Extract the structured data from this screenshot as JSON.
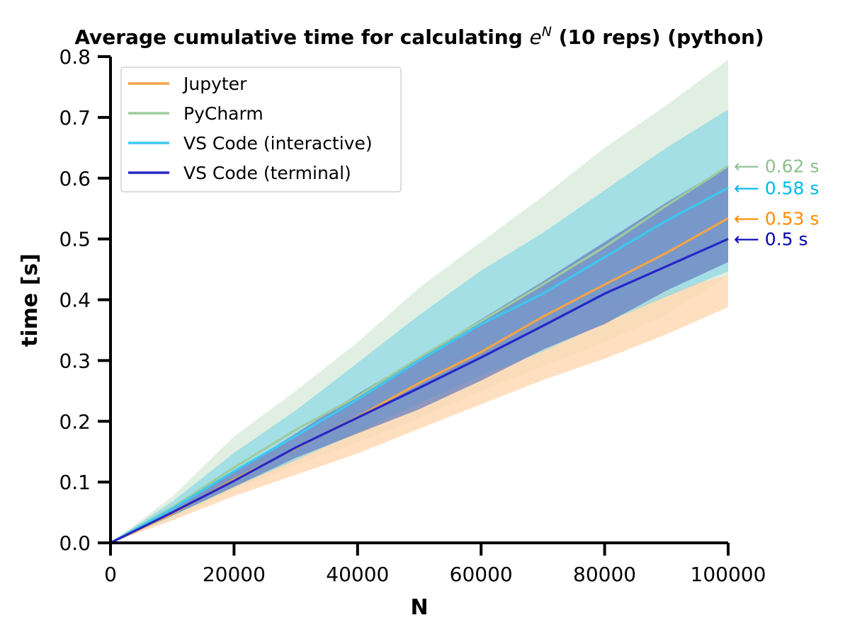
{
  "chart_data": {
    "type": "line",
    "title_prefix": "Average cumulative time for calculating ",
    "title_base": "e",
    "title_sup": "N",
    "title_suffix": " (10 reps) (python)",
    "xlabel": "N",
    "ylabel": "time [s]",
    "xlim": [
      0,
      100000
    ],
    "ylim": [
      0,
      0.8
    ],
    "xticks": [
      0,
      20000,
      40000,
      60000,
      80000,
      100000
    ],
    "xtick_labels": [
      "0",
      "20000",
      "40000",
      "60000",
      "80000",
      "100000"
    ],
    "yticks": [
      0.0,
      0.1,
      0.2,
      0.3,
      0.4,
      0.5,
      0.6,
      0.7,
      0.8
    ],
    "ytick_labels": [
      "0.0",
      "0.1",
      "0.2",
      "0.3",
      "0.4",
      "0.5",
      "0.6",
      "0.7",
      "0.8"
    ],
    "grid": false,
    "legend_position": "top-left",
    "x": [
      0,
      10000,
      20000,
      30000,
      40000,
      50000,
      60000,
      70000,
      80000,
      90000,
      100000
    ],
    "series": [
      {
        "name": "Jupyter",
        "color": "#f5a445",
        "band_color": "#ffd7b0",
        "mean": [
          0,
          0.048,
          0.104,
          0.156,
          0.207,
          0.263,
          0.314,
          0.372,
          0.425,
          0.477,
          0.534
        ],
        "lower": [
          0,
          0.037,
          0.077,
          0.112,
          0.147,
          0.188,
          0.228,
          0.268,
          0.303,
          0.343,
          0.388
        ],
        "upper": [
          0,
          0.053,
          0.115,
          0.17,
          0.225,
          0.282,
          0.328,
          0.37,
          0.398,
          0.415,
          0.44
        ],
        "end_label": "0.53 s",
        "end_label_color": "#ff8c00"
      },
      {
        "name": "PyCharm",
        "color": "#9ecb9e",
        "band_color": "#d5e9d8",
        "mean": [
          0,
          0.058,
          0.124,
          0.186,
          0.241,
          0.305,
          0.365,
          0.425,
          0.487,
          0.555,
          0.62
        ],
        "lower": [
          0,
          0.04,
          0.088,
          0.128,
          0.165,
          0.205,
          0.25,
          0.29,
          0.33,
          0.375,
          0.44
        ],
        "upper": [
          0,
          0.076,
          0.175,
          0.25,
          0.33,
          0.42,
          0.495,
          0.57,
          0.65,
          0.72,
          0.795
        ],
        "end_label": "0.62 s",
        "end_label_color": "#8fbf8f"
      },
      {
        "name": "VS Code (interactive)",
        "color": "#3cc8f0",
        "band_color": "#8fd9e6",
        "mean": [
          0,
          0.056,
          0.118,
          0.176,
          0.236,
          0.3,
          0.36,
          0.41,
          0.47,
          0.53,
          0.584
        ],
        "lower": [
          0,
          0.044,
          0.092,
          0.136,
          0.182,
          0.23,
          0.275,
          0.315,
          0.362,
          0.405,
          0.447
        ],
        "upper": [
          0,
          0.068,
          0.148,
          0.218,
          0.296,
          0.375,
          0.448,
          0.51,
          0.58,
          0.65,
          0.713
        ],
        "end_label": "0.58 s",
        "end_label_color": "#00b8e8"
      },
      {
        "name": "VS Code (terminal)",
        "color": "#2626c8",
        "band_color": "#6a80c0",
        "mean": [
          0,
          0.05,
          0.102,
          0.157,
          0.206,
          0.255,
          0.305,
          0.357,
          0.41,
          0.455,
          0.5
        ],
        "lower": [
          0,
          0.045,
          0.092,
          0.14,
          0.18,
          0.22,
          0.267,
          0.318,
          0.36,
          0.415,
          0.462
        ],
        "upper": [
          0,
          0.056,
          0.117,
          0.18,
          0.245,
          0.305,
          0.368,
          0.43,
          0.495,
          0.56,
          0.62
        ],
        "end_label": "0.5 s",
        "end_label_color": "#0000b4"
      }
    ]
  }
}
